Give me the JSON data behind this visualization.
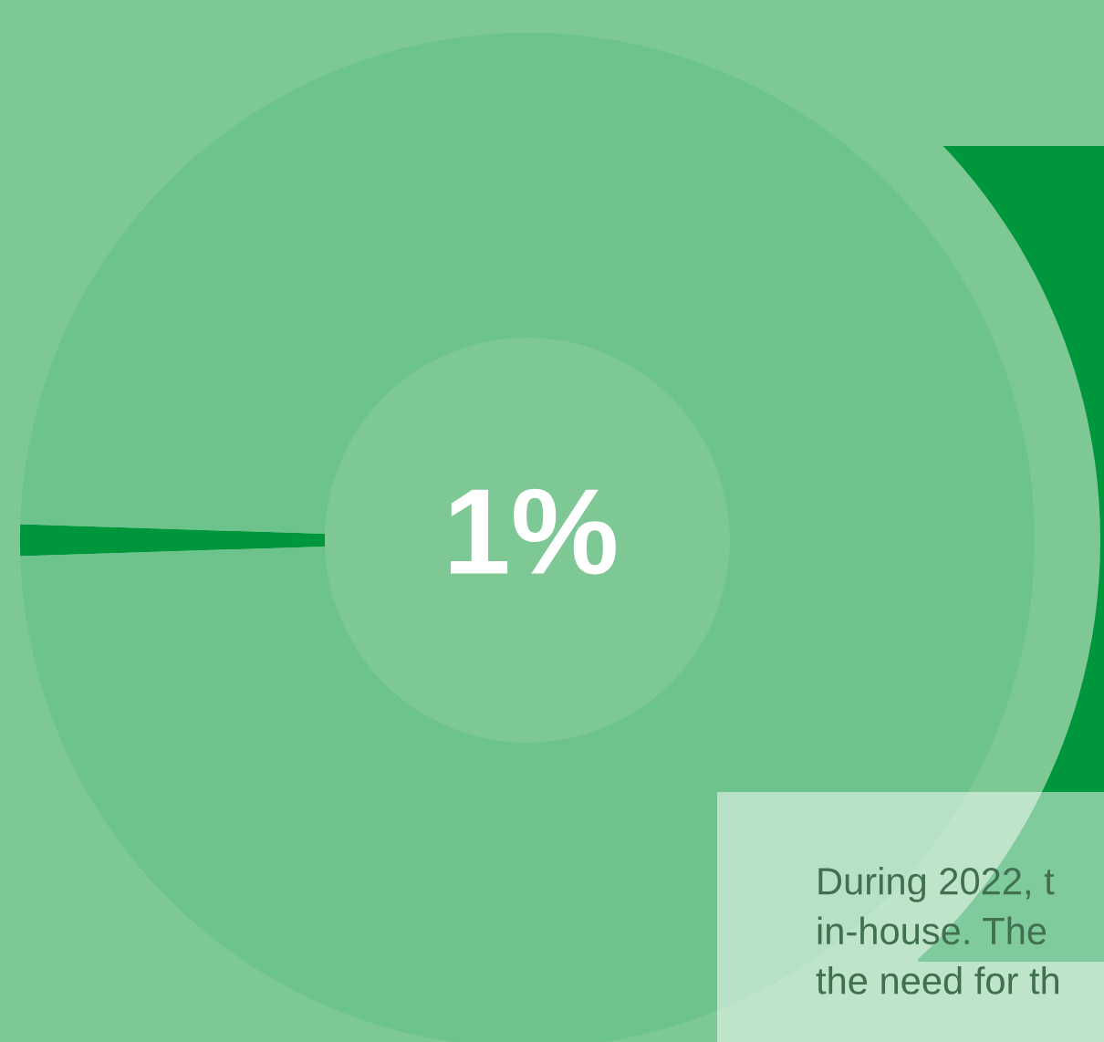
{
  "chart_data": {
    "type": "donut",
    "categories": [
      null,
      null
    ],
    "values": [
      1,
      99
    ],
    "colors": [
      "#00963c",
      "#6cc38c"
    ],
    "annotations": [
      "1%",
      "During 2022, t\nin-house. The\nthe need for th"
    ]
  }
}
